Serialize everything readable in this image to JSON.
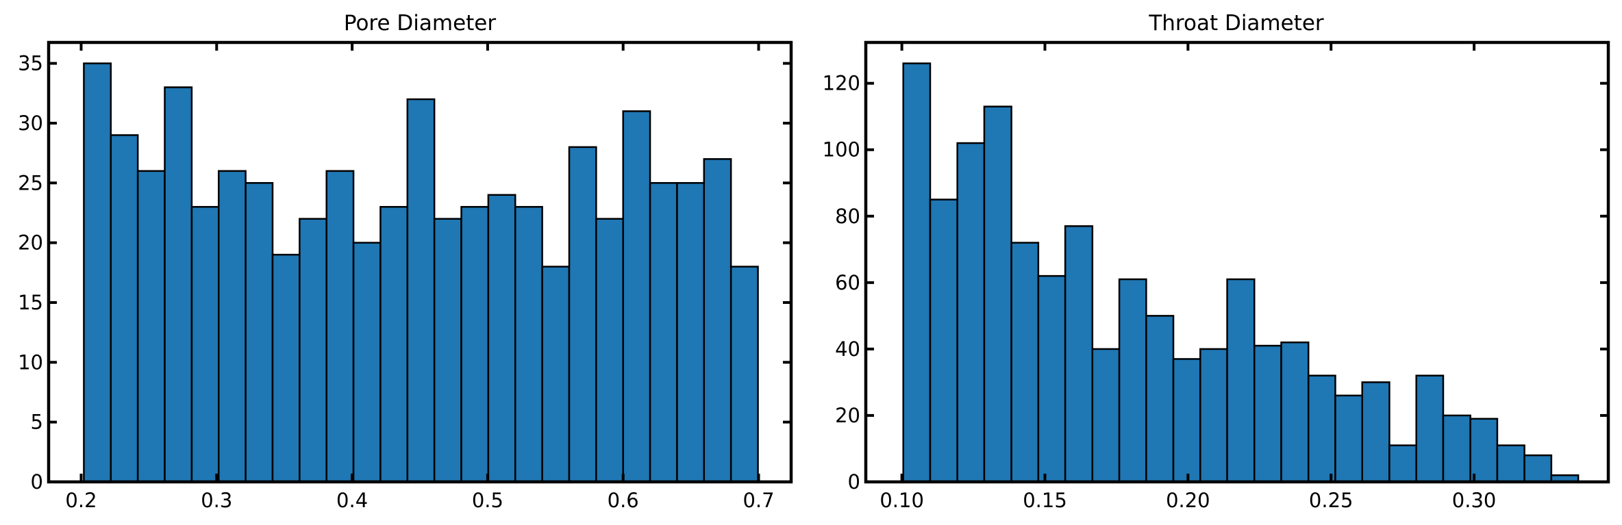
{
  "colors": {
    "bar_fill": "#1f77b4",
    "bar_edge": "#000000",
    "background": "#ffffff"
  },
  "chart_data": [
    {
      "type": "bar",
      "title": "Pore Diameter",
      "xlabel": "",
      "ylabel": "",
      "grid": false,
      "legend": "none",
      "xlim": [
        0.176,
        0.724
      ],
      "ylim": [
        0,
        36.75
      ],
      "xticks": [
        0.2,
        0.3,
        0.4,
        0.5,
        0.6,
        0.7
      ],
      "xtick_labels": [
        "0.2",
        "0.3",
        "0.4",
        "0.5",
        "0.6",
        "0.7"
      ],
      "yticks": [
        0,
        5,
        10,
        15,
        20,
        25,
        30,
        35
      ],
      "ytick_labels": [
        "0",
        "5",
        "10",
        "15",
        "20",
        "25",
        "30",
        "35"
      ],
      "bin_edges": [
        0.202,
        0.2219,
        0.2418,
        0.2617,
        0.2816,
        0.3015,
        0.3214,
        0.3413,
        0.3612,
        0.3811,
        0.401,
        0.4209,
        0.4408,
        0.4607,
        0.4806,
        0.5005,
        0.5204,
        0.5403,
        0.5602,
        0.5801,
        0.6,
        0.6199,
        0.6398,
        0.6597,
        0.6796,
        0.6995
      ],
      "values": [
        35,
        29,
        26,
        33,
        23,
        26,
        25,
        19,
        22,
        26,
        20,
        23,
        32,
        22,
        23,
        24,
        23,
        18,
        28,
        22,
        31,
        25,
        25,
        27,
        18
      ]
    },
    {
      "type": "bar",
      "title": "Throat Diameter",
      "xlabel": "",
      "ylabel": "",
      "grid": false,
      "legend": "none",
      "xlim": [
        0.0874,
        0.3469
      ],
      "ylim": [
        0,
        132.3
      ],
      "xticks": [
        0.1,
        0.15,
        0.2,
        0.25,
        0.3
      ],
      "xtick_labels": [
        "0.10",
        "0.15",
        "0.20",
        "0.25",
        "0.30"
      ],
      "yticks": [
        0,
        20,
        40,
        60,
        80,
        100,
        120
      ],
      "ytick_labels": [
        "0",
        "20",
        "40",
        "60",
        "80",
        "100",
        "120"
      ],
      "bin_edges": [
        0.1005,
        0.1099,
        0.1194,
        0.1288,
        0.1383,
        0.1477,
        0.1571,
        0.1666,
        0.176,
        0.1854,
        0.1949,
        0.2043,
        0.2137,
        0.2232,
        0.2326,
        0.2421,
        0.2515,
        0.2609,
        0.2704,
        0.2798,
        0.2892,
        0.2987,
        0.3081,
        0.3176,
        0.327,
        0.3364
      ],
      "values": [
        126,
        85,
        102,
        113,
        72,
        62,
        77,
        40,
        61,
        50,
        37,
        40,
        61,
        41,
        42,
        32,
        26,
        30,
        11,
        32,
        20,
        19,
        11,
        8,
        2
      ]
    }
  ]
}
